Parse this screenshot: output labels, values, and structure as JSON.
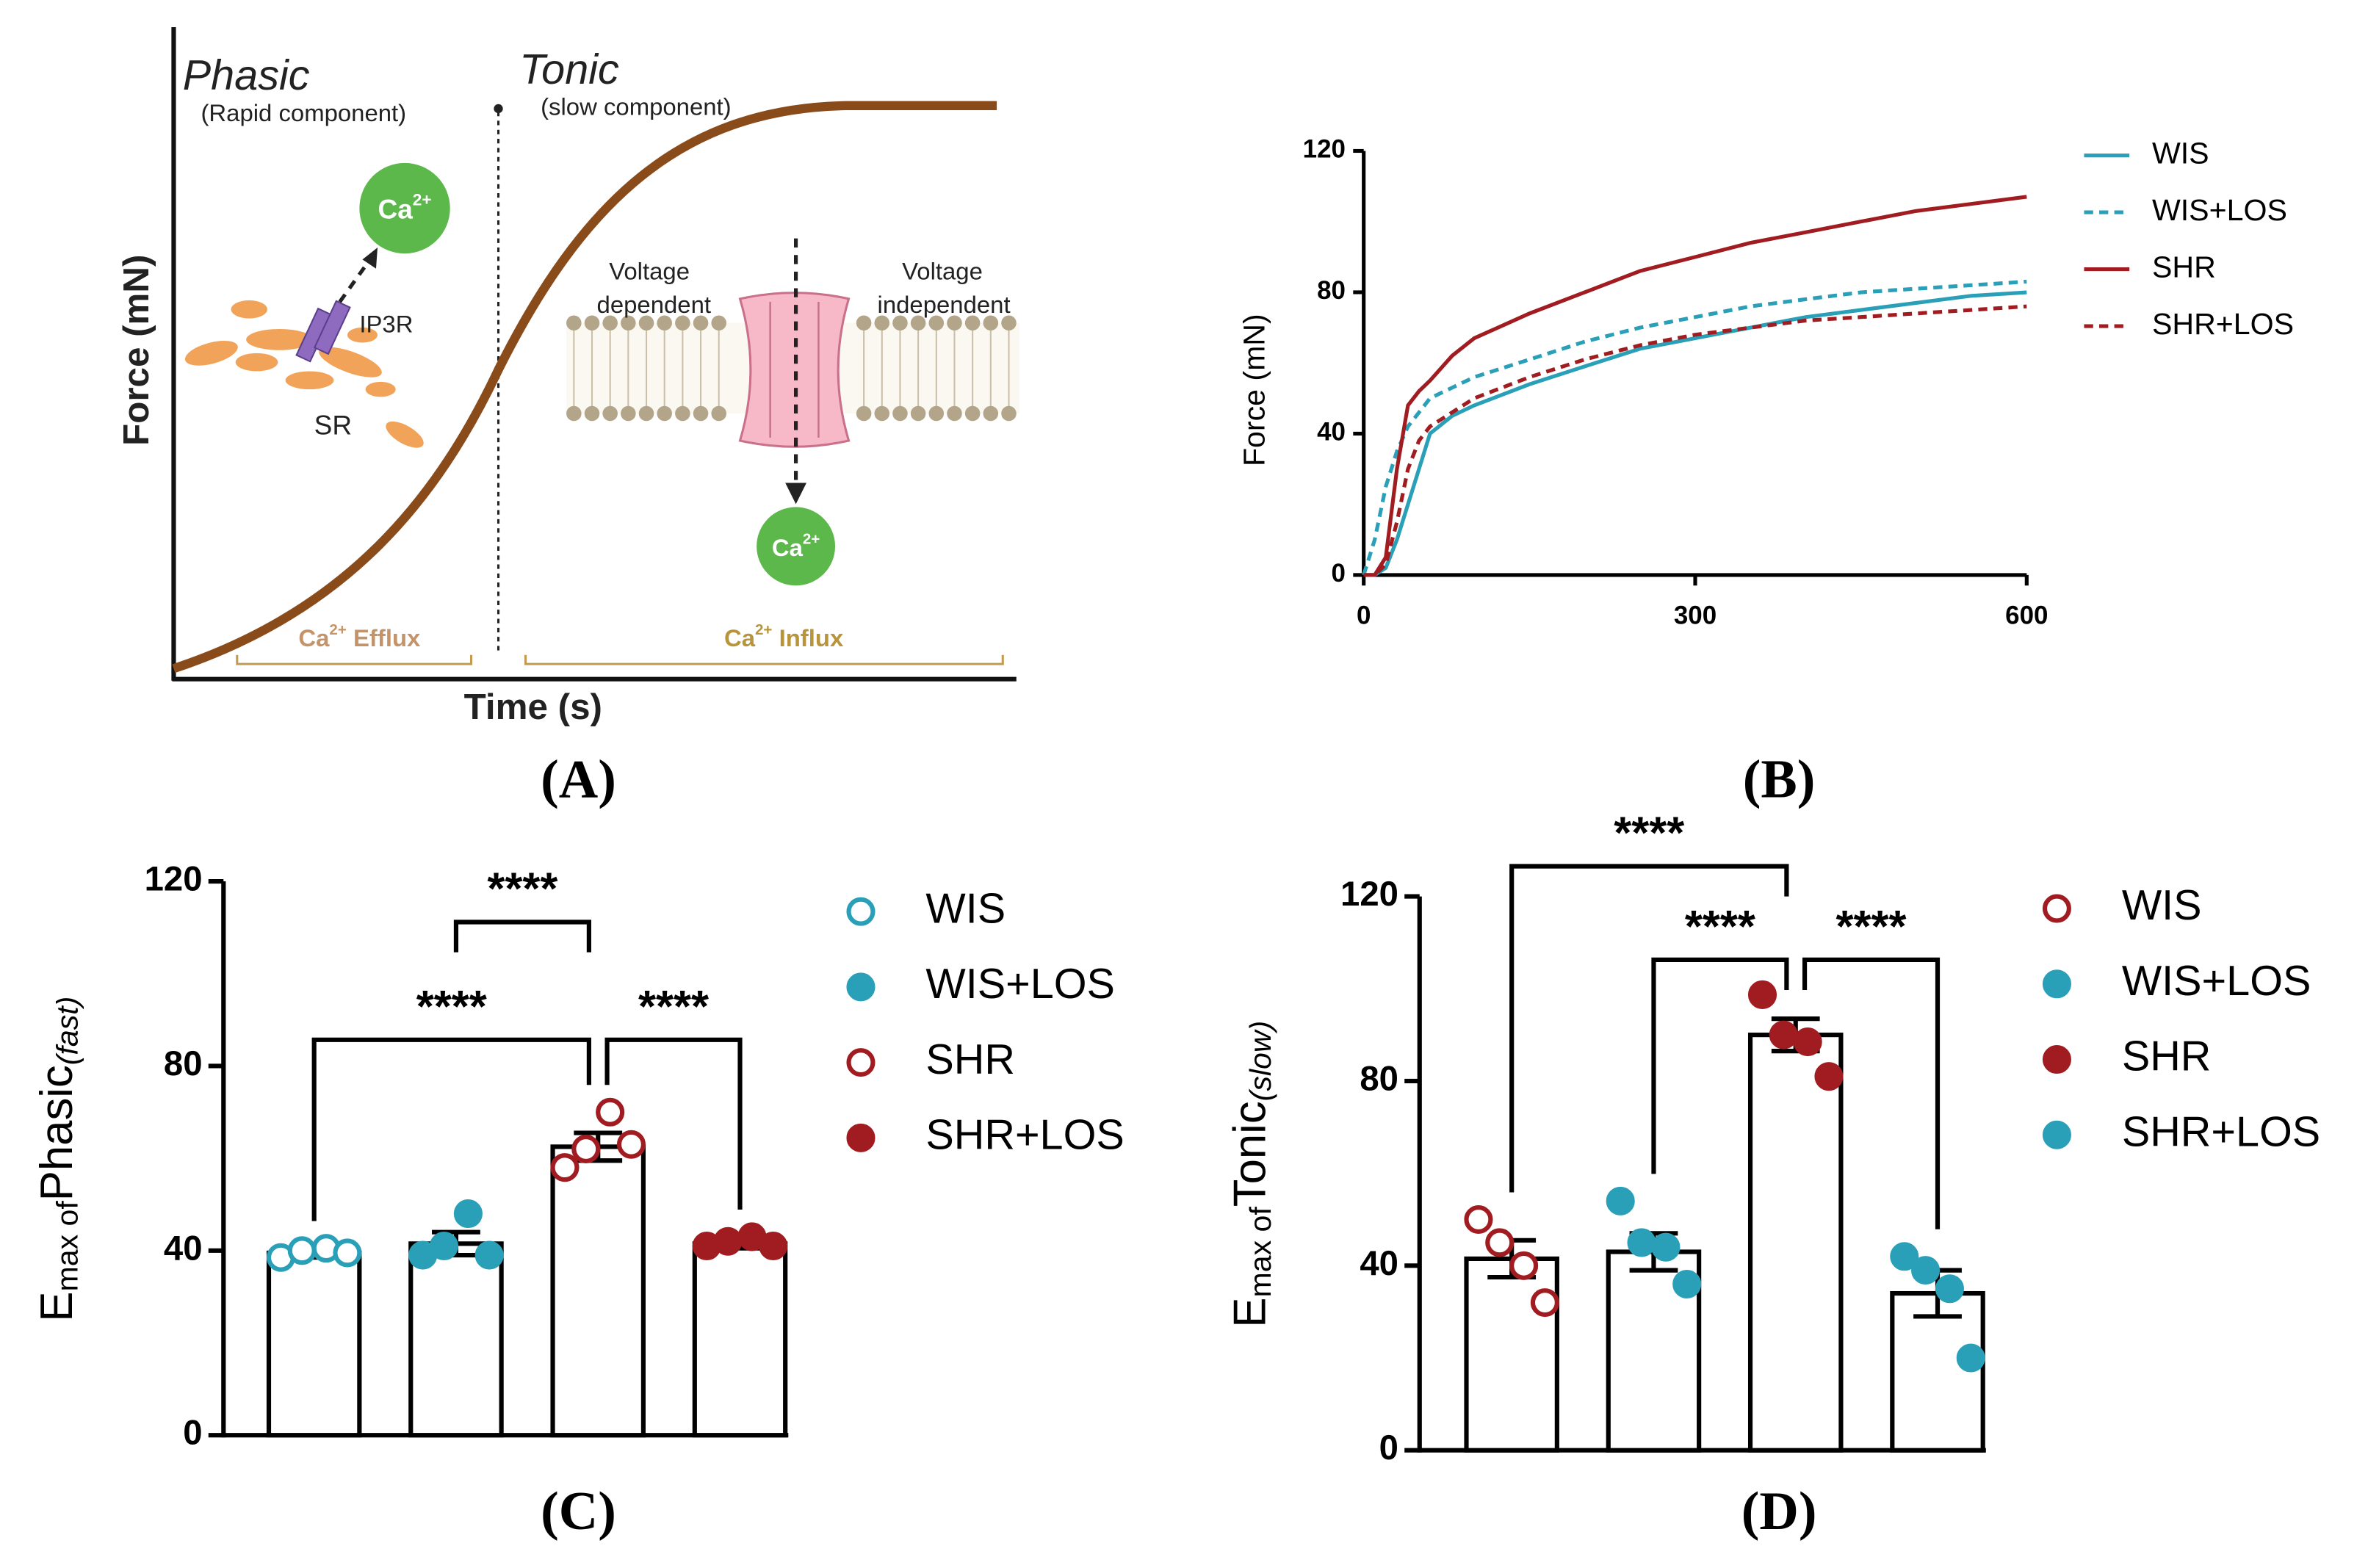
{
  "diagram": {
    "panel_label": "(A)",
    "phase1": "Phasic",
    "phase1_sub": "(Rapid component)",
    "phase2": "Tonic",
    "phase2_sub": "(slow component)",
    "ylabel": "Force (mN)",
    "xlabel": "Time (s)",
    "ca_top": {
      "base": "Ca",
      "sup": "2+"
    },
    "ca_bottom": {
      "base": "Ca",
      "sup": "2+"
    },
    "receptor": "IP3R",
    "organelle": "SR",
    "left_channel": [
      "Voltage",
      "dependent"
    ],
    "right_channel": [
      "Voltage",
      "independent"
    ],
    "efflux": {
      "base": "Ca",
      "sup": "2+",
      "rest": " Efflux"
    },
    "influx": {
      "base": "Ca",
      "sup": "2+",
      "rest": " Influx"
    }
  },
  "chart_data": [
    {
      "type": "line",
      "panel_label": "(B)",
      "ylabel": "Force (mN)",
      "x": [
        0,
        10,
        20,
        30,
        40,
        50,
        60,
        80,
        100,
        150,
        200,
        250,
        300,
        350,
        400,
        450,
        500,
        550,
        600
      ],
      "xlim": [
        0,
        600
      ],
      "xticks": [
        0,
        300,
        600
      ],
      "ylim": [
        0,
        120
      ],
      "yticks": [
        0,
        40,
        80,
        120
      ],
      "legend": "outside right",
      "series": [
        {
          "name": "WIS",
          "color": "#2a9fb8",
          "linestyle": "solid",
          "values": [
            0,
            0,
            2,
            10,
            20,
            30,
            40,
            45,
            48,
            54,
            59,
            64,
            67,
            70,
            73,
            75,
            77,
            79,
            80
          ]
        },
        {
          "name": "WIS+LOS",
          "color": "#2a9fb8",
          "linestyle": "dashed",
          "values": [
            0,
            10,
            25,
            35,
            42,
            46,
            50,
            53,
            56,
            61,
            66,
            70,
            73,
            76,
            78,
            80,
            81,
            82,
            83
          ]
        },
        {
          "name": "SHR",
          "color": "#a01c20",
          "linestyle": "solid",
          "values": [
            0,
            0,
            5,
            30,
            48,
            52,
            55,
            62,
            67,
            74,
            80,
            86,
            90,
            94,
            97,
            100,
            103,
            105,
            107
          ]
        },
        {
          "name": "SHR+LOS",
          "color": "#a01c20",
          "linestyle": "dashed",
          "values": [
            0,
            0,
            3,
            15,
            30,
            38,
            42,
            46,
            50,
            56,
            61,
            65,
            68,
            70,
            72,
            73,
            74,
            75,
            76
          ]
        }
      ]
    },
    {
      "type": "bar",
      "panel_label": "(C)",
      "ylabel_parts": [
        "E",
        "max of",
        "Phasic",
        "(fast)"
      ],
      "categories": [
        "WIS",
        "WIS+LOS",
        "SHR",
        "SHR+LOS"
      ],
      "values": [
        39.5,
        41.5,
        62.5,
        41.5
      ],
      "errors": [
        1,
        2.5,
        3,
        1
      ],
      "points": [
        [
          38.5,
          40,
          40.5,
          39.5
        ],
        [
          39,
          41,
          48,
          39
        ],
        [
          58,
          62,
          70,
          63
        ],
        [
          41,
          42,
          43,
          41
        ]
      ],
      "marker_colors": [
        "#2a9fb8",
        "#2a9fb8",
        "#a01c20",
        "#a01c20"
      ],
      "marker_filled": [
        false,
        true,
        false,
        true
      ],
      "ylim": [
        0,
        120
      ],
      "yticks": [
        0,
        40,
        80,
        120
      ],
      "legend": "outside right",
      "comparisons": [
        {
          "groups": [
            "WIS+LOS",
            "SHR"
          ],
          "label": "****"
        },
        {
          "groups": [
            "WIS",
            "SHR"
          ],
          "label": "****"
        },
        {
          "groups": [
            "SHR",
            "SHR+LOS"
          ],
          "label": "****"
        }
      ]
    },
    {
      "type": "bar",
      "panel_label": "(D)",
      "ylabel_parts": [
        "E",
        "max of",
        "Tonic",
        "(slow)"
      ],
      "categories": [
        "WIS",
        "WIS+LOS",
        "SHR",
        "SHR+LOS"
      ],
      "values": [
        41.5,
        43,
        90,
        34
      ],
      "errors": [
        4,
        4,
        3.5,
        5
      ],
      "points": [
        [
          50,
          45,
          40,
          32
        ],
        [
          54,
          45,
          44,
          36
        ],
        [
          98.7,
          90,
          88.5,
          81
        ],
        [
          42,
          39,
          35,
          20
        ]
      ],
      "marker_colors": [
        "#a01c20",
        "#2a9fb8",
        "#a01c20",
        "#2a9fb8"
      ],
      "marker_filled": [
        false,
        true,
        true,
        true
      ],
      "ylim": [
        0,
        120
      ],
      "yticks": [
        0,
        40,
        80,
        120
      ],
      "legend": "outside right",
      "comparisons": [
        {
          "groups": [
            "WIS",
            "SHR"
          ],
          "label": "****"
        },
        {
          "groups": [
            "WIS+LOS",
            "SHR"
          ],
          "label": "****"
        },
        {
          "groups": [
            "SHR",
            "SHR+LOS"
          ],
          "label": "****"
        }
      ]
    }
  ]
}
